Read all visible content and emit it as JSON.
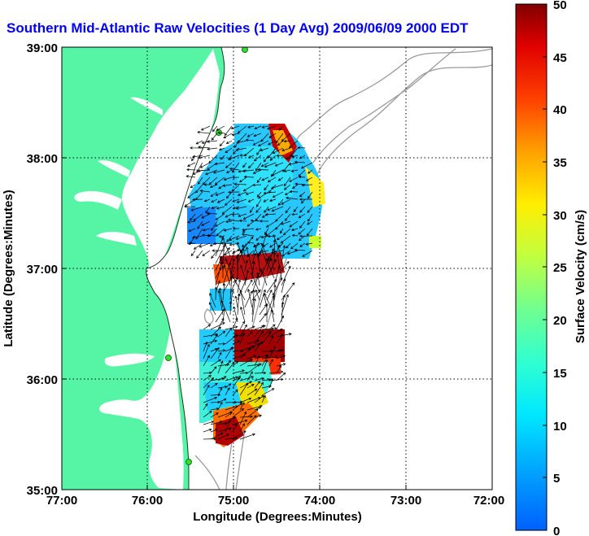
{
  "title": "Southern Mid-Atlantic Raw Velocities (1 Day Avg) 2009/06/09 2000 EDT",
  "map": {
    "xlabel": "Longitude (Degrees:Minutes)",
    "ylabel": "Latitude (Degrees:Minutes)",
    "lon_ticks": [
      "77:00",
      "76:00",
      "75:00",
      "74:00",
      "73:00",
      "72:00"
    ],
    "lat_ticks": [
      "39:00",
      "38:00",
      "37:00",
      "36:00",
      "35:00"
    ],
    "lon_range": [
      -77,
      -72
    ],
    "lat_range": [
      35,
      39
    ],
    "grid": true,
    "land_color": "#55f5a5",
    "bathymetry_color": "#999999"
  },
  "colorbar": {
    "label": "Surface Velocity (cm/s)",
    "ticks": [
      "0",
      "5",
      "10",
      "15",
      "20",
      "25",
      "30",
      "35",
      "40",
      "45",
      "50"
    ],
    "range": [
      0,
      50
    ]
  }
}
